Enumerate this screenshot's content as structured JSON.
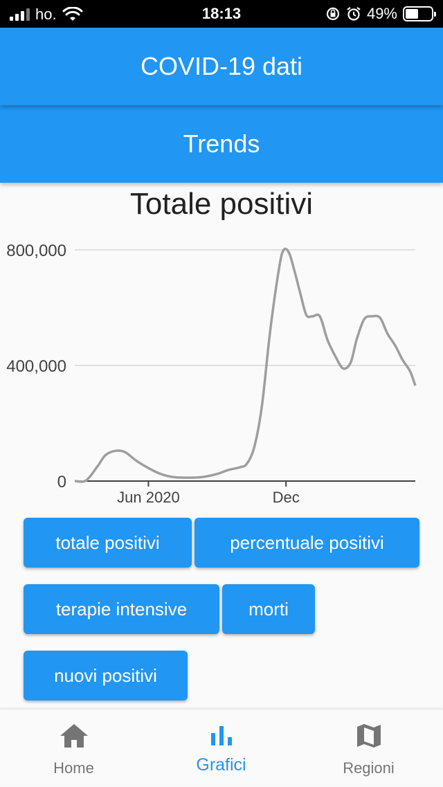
{
  "status_bar": {
    "carrier": "ho.",
    "time": "18:13",
    "battery": "49%"
  },
  "app_bar": {
    "title": "COVID-19 dati"
  },
  "sub_bar": {
    "title": "Trends"
  },
  "chart_data": {
    "type": "line",
    "title": "Totale positivi",
    "x_tick_labels": [
      "Jun 2020",
      "Dec"
    ],
    "y_tick_labels": [
      "0",
      "400,000",
      "800,000"
    ],
    "ylim": [
      0,
      800000
    ],
    "grid": true,
    "line_color": "#9e9e9e",
    "series": [
      {
        "x": [
          "2020-02-24",
          "2020-03-10",
          "2020-03-25",
          "2020-04-05",
          "2020-04-19",
          "2020-05-01",
          "2020-05-15",
          "2020-06-01",
          "2020-06-15",
          "2020-07-01",
          "2020-07-15",
          "2020-08-01",
          "2020-08-15",
          "2020-09-01",
          "2020-09-15",
          "2020-10-01",
          "2020-10-10",
          "2020-10-20",
          "2020-10-30",
          "2020-11-10",
          "2020-11-22",
          "2020-11-28",
          "2020-12-05",
          "2020-12-12",
          "2020-12-20",
          "2020-12-28",
          "2021-01-05",
          "2021-01-15",
          "2021-01-25",
          "2021-02-05",
          "2021-02-15",
          "2021-02-25",
          "2021-03-05",
          "2021-03-15",
          "2021-03-25",
          "2021-04-05",
          "2021-04-15",
          "2021-04-25",
          "2021-05-05",
          "2021-05-15",
          "2021-05-22"
        ],
        "y": [
          0,
          2000,
          50000,
          90000,
          105000,
          100000,
          72000,
          45000,
          27000,
          15000,
          12000,
          12000,
          15000,
          25000,
          38000,
          48000,
          60000,
          120000,
          260000,
          520000,
          740000,
          800000,
          790000,
          730000,
          650000,
          575000,
          570000,
          570000,
          490000,
          430000,
          390000,
          410000,
          490000,
          560000,
          570000,
          565000,
          510000,
          470000,
          420000,
          380000,
          330000
        ]
      }
    ]
  },
  "buttons": [
    {
      "label": "totale positivi"
    },
    {
      "label": "percentuale positivi"
    },
    {
      "label": "terapie intensive"
    },
    {
      "label": "morti"
    },
    {
      "label": "nuovi positivi"
    }
  ],
  "bottom_nav": [
    {
      "label": "Home",
      "icon": "home-icon"
    },
    {
      "label": "Grafici",
      "icon": "bar-chart-icon",
      "active": true
    },
    {
      "label": "Regioni",
      "icon": "map-icon"
    }
  ],
  "colors": {
    "primary": "#2196f3",
    "inactive": "#757575"
  }
}
